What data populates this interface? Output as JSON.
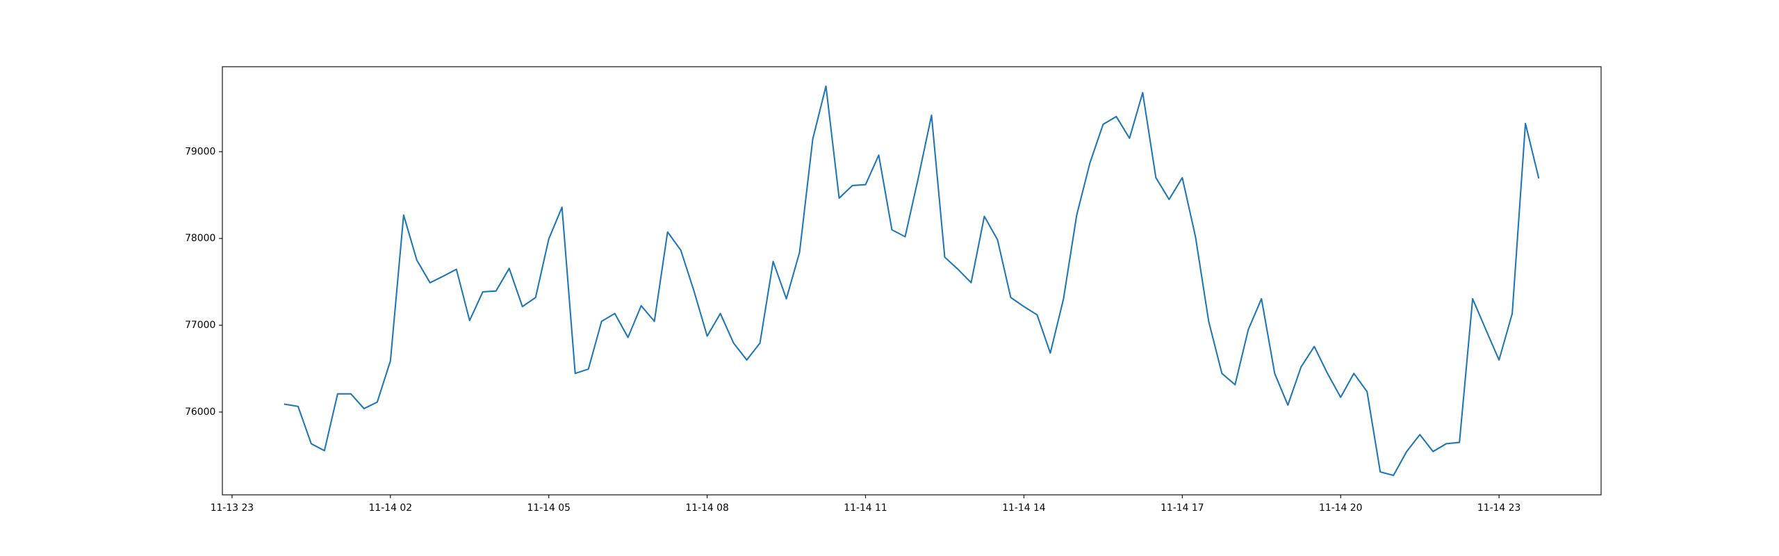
{
  "chart_data": {
    "type": "line",
    "color": "#1f77b4",
    "x": [
      "11-14 00:00",
      "11-14 00:15",
      "11-14 00:30",
      "11-14 00:45",
      "11-14 01:00",
      "11-14 01:15",
      "11-14 01:30",
      "11-14 01:45",
      "11-14 02:00",
      "11-14 02:15",
      "11-14 02:30",
      "11-14 02:45",
      "11-14 03:00",
      "11-14 03:15",
      "11-14 03:30",
      "11-14 03:45",
      "11-14 04:00",
      "11-14 04:15",
      "11-14 04:30",
      "11-14 04:45",
      "11-14 05:00",
      "11-14 05:15",
      "11-14 05:30",
      "11-14 05:45",
      "11-14 06:00",
      "11-14 06:15",
      "11-14 06:30",
      "11-14 06:45",
      "11-14 07:00",
      "11-14 07:15",
      "11-14 07:30",
      "11-14 07:45",
      "11-14 08:00",
      "11-14 08:15",
      "11-14 08:30",
      "11-14 08:45",
      "11-14 09:00",
      "11-14 09:15",
      "11-14 09:30",
      "11-14 09:45",
      "11-14 10:00",
      "11-14 10:15",
      "11-14 10:30",
      "11-14 10:45",
      "11-14 11:00",
      "11-14 11:15",
      "11-14 11:30",
      "11-14 11:45",
      "11-14 12:00",
      "11-14 12:15",
      "11-14 12:30",
      "11-14 12:45",
      "11-14 13:00",
      "11-14 13:15",
      "11-14 13:30",
      "11-14 13:45",
      "11-14 14:00",
      "11-14 14:15",
      "11-14 14:30",
      "11-14 14:45",
      "11-14 15:00",
      "11-14 15:15",
      "11-14 15:30",
      "11-14 15:45",
      "11-14 16:00",
      "11-14 16:15",
      "11-14 16:30",
      "11-14 16:45",
      "11-14 17:00",
      "11-14 17:15",
      "11-14 17:30",
      "11-14 17:45",
      "11-14 18:00",
      "11-14 18:15",
      "11-14 18:30",
      "11-14 18:45",
      "11-14 19:00",
      "11-14 19:15",
      "11-14 19:30",
      "11-14 19:45",
      "11-14 20:00",
      "11-14 20:15",
      "11-14 20:30",
      "11-14 20:45",
      "11-14 21:00",
      "11-14 21:15",
      "11-14 21:30",
      "11-14 21:45",
      "11-14 22:00",
      "11-14 22:15",
      "11-14 22:30",
      "11-14 22:45",
      "11-14 23:00",
      "11-14 23:15",
      "11-14 23:30",
      "11-14 23:45"
    ],
    "values": [
      76090,
      76065,
      75635,
      75555,
      76210,
      76210,
      76040,
      76115,
      76590,
      78270,
      77750,
      77490,
      77565,
      77645,
      77055,
      77385,
      77395,
      77655,
      77215,
      77320,
      77995,
      78360,
      76445,
      76495,
      77045,
      77135,
      76860,
      77225,
      77045,
      78075,
      77865,
      77395,
      76875,
      77135,
      76795,
      76600,
      76795,
      77735,
      77305,
      77840,
      79145,
      79755,
      78465,
      78610,
      78620,
      78960,
      78100,
      78020,
      78700,
      79420,
      77785,
      77645,
      77490,
      78255,
      77985,
      77320,
      77215,
      77120,
      76680,
      77305,
      78270,
      78870,
      79315,
      79405,
      79155,
      79680,
      78700,
      78450,
      78700,
      78020,
      77045,
      76445,
      76315,
      76950,
      77305,
      76445,
      76080,
      76520,
      76755,
      76445,
      76170,
      76445,
      76235,
      75310,
      75270,
      75545,
      75740,
      75545,
      75635,
      75650,
      77305,
      76950,
      76600,
      77135,
      79325,
      78700
    ],
    "xlim": [
      "11-13 22:49",
      "11-15 00:56"
    ],
    "xticks": [
      "11-13 23",
      "11-14 02",
      "11-14 05",
      "11-14 08",
      "11-14 11",
      "11-14 14",
      "11-14 17",
      "11-14 20",
      "11-14 23"
    ],
    "ylim": [
      75046,
      79979
    ],
    "yticks": [
      76000,
      77000,
      78000,
      79000
    ],
    "grid": false
  }
}
